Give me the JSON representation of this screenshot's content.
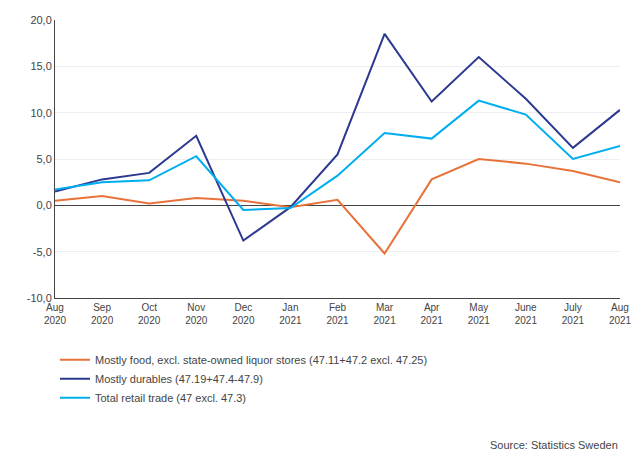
{
  "chart_data": {
    "type": "line",
    "categories": [
      "Aug\n2020",
      "Sep\n2020",
      "Oct\n2020",
      "Nov\n2020",
      "Dec\n2020",
      "Jan\n2021",
      "Feb\n2021",
      "Mar\n2021",
      "Apr\n2021",
      "May\n2021",
      "June\n2021",
      "July\n2021",
      "Aug\n2021"
    ],
    "series": [
      {
        "name": "Mostly food, excl. state-owned liquor stores (47.11+47.2 excl. 47.25)",
        "color": "#E8733A",
        "values": [
          0.5,
          1.0,
          0.2,
          0.8,
          0.5,
          -0.2,
          0.6,
          -5.2,
          2.8,
          5.0,
          4.5,
          3.7,
          2.5
        ]
      },
      {
        "name": "Mostly durables (47.19+47.4-47.9)",
        "color": "#2B3990",
        "values": [
          1.5,
          2.8,
          3.5,
          7.5,
          -3.8,
          -0.2,
          5.5,
          18.5,
          11.2,
          16.0,
          11.5,
          6.2,
          10.3
        ]
      },
      {
        "name": "Total retail trade (47 excl. 47.3)",
        "color": "#00AEEF",
        "values": [
          1.7,
          2.5,
          2.7,
          5.3,
          -0.5,
          -0.3,
          3.2,
          7.8,
          7.2,
          11.3,
          9.8,
          5.0,
          6.4
        ]
      }
    ],
    "ylim": [
      -10.0,
      20.0
    ],
    "yticks": [
      {
        "value": -10.0,
        "label": "-10,0"
      },
      {
        "value": -5.0,
        "label": "-5,0"
      },
      {
        "value": 0.0,
        "label": "0,0"
      },
      {
        "value": 5.0,
        "label": "5,0"
      },
      {
        "value": 10.0,
        "label": "10,0"
      },
      {
        "value": 15.0,
        "label": "15,0"
      },
      {
        "value": 20.0,
        "label": "20,0"
      }
    ],
    "grid": true,
    "legend": "bottom",
    "annotations": [
      "Source: Statistics Sweden"
    ]
  }
}
